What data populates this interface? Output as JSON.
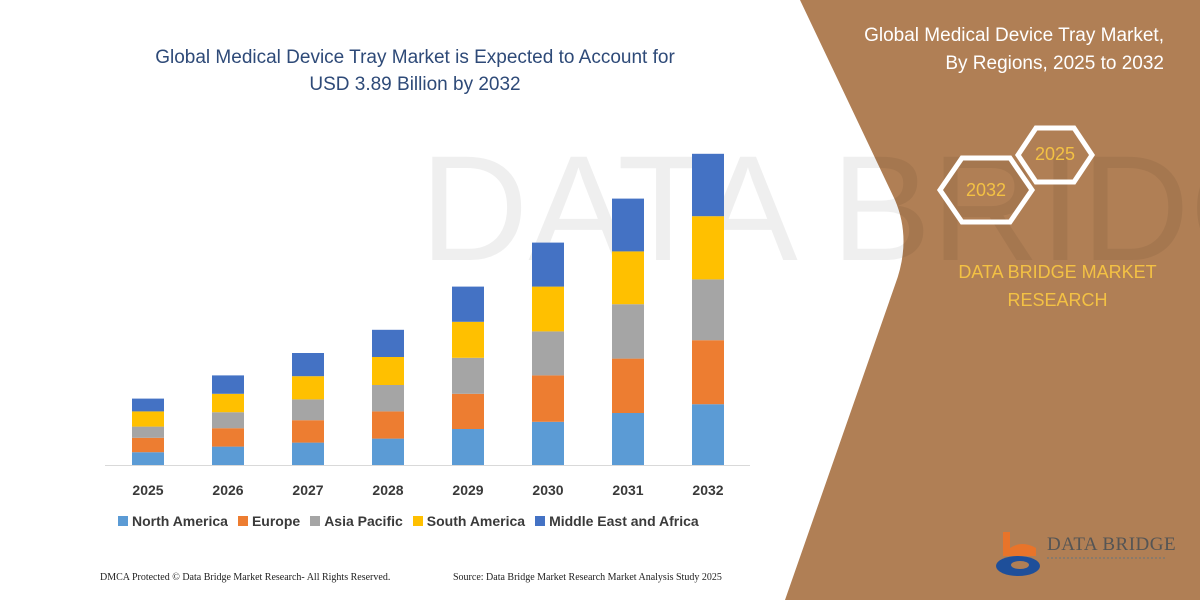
{
  "header": {
    "title_line1": "Global Medical Device Tray Market is Expected to Account for",
    "title_line2": "USD 3.89 Billion by 2032"
  },
  "side_panel": {
    "title_line1": "Global Medical Device Tray Market,",
    "title_line2": "By Regions, 2025 to 2032",
    "hex_back": "2025",
    "hex_front": "2032",
    "brand_line1": "DATA BRIDGE MARKET",
    "brand_line2": "RESEARCH",
    "logo_text": "DATA BRIDGE",
    "panel_color": "#b07f55",
    "accent_color": "#f3c144"
  },
  "footer": {
    "left": "DMCA Protected © Data Bridge Market Research-  All Rights Reserved.",
    "right": "Source: Data Bridge Market Research  Market Analysis Study 2025"
  },
  "chart_data": {
    "type": "bar",
    "stacked": true,
    "title": "Global Medical Device Tray Market is Expected to Account for USD 3.89 Billion by 2032",
    "xlabel": "",
    "ylabel": "",
    "y_axis_visible": false,
    "grid": false,
    "legend_position": "bottom",
    "ylim": [
      0,
      4.2
    ],
    "categories": [
      "2025",
      "2026",
      "2027",
      "2028",
      "2029",
      "2030",
      "2031",
      "2032"
    ],
    "series": [
      {
        "name": "North America",
        "color": "#5b9bd5",
        "values": [
          0.16,
          0.23,
          0.28,
          0.33,
          0.45,
          0.54,
          0.65,
          0.76
        ]
      },
      {
        "name": "Europe",
        "color": "#ed7d31",
        "values": [
          0.18,
          0.23,
          0.28,
          0.34,
          0.44,
          0.58,
          0.68,
          0.8
        ]
      },
      {
        "name": "Asia Pacific",
        "color": "#a5a5a5",
        "values": [
          0.14,
          0.2,
          0.26,
          0.33,
          0.45,
          0.55,
          0.68,
          0.76
        ]
      },
      {
        "name": "South America",
        "color": "#ffc000",
        "values": [
          0.19,
          0.23,
          0.29,
          0.35,
          0.45,
          0.56,
          0.66,
          0.79
        ]
      },
      {
        "name": "Middle East and Africa",
        "color": "#4472c4",
        "values": [
          0.16,
          0.23,
          0.29,
          0.34,
          0.44,
          0.55,
          0.66,
          0.78
        ]
      }
    ]
  }
}
